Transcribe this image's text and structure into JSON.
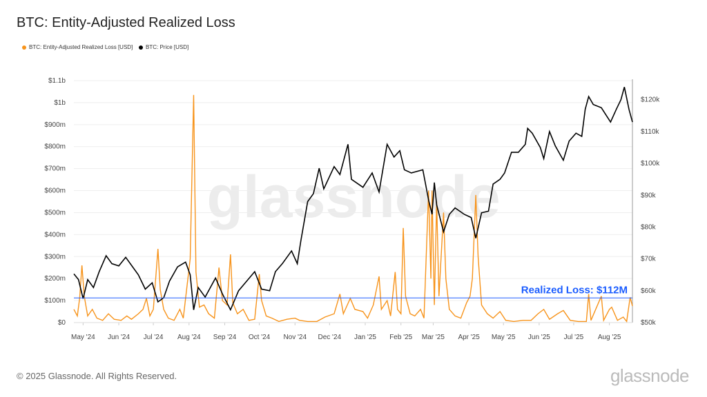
{
  "title": "BTC: Entity-Adjusted Realized Loss",
  "footer": "© 2025 Glassnode. All Rights Reserved.",
  "brand": "glassnode",
  "watermark": "glassnode",
  "chart_data": {
    "type": "line",
    "title": "BTC: Entity-Adjusted Realized Loss",
    "x_range": [
      "2024-04-23",
      "2025-08-21"
    ],
    "x_ticks": [
      "May '24",
      "Jun '24",
      "Jul '24",
      "Aug '24",
      "Sep '24",
      "Oct '24",
      "Nov '24",
      "Dec '24",
      "Jan '25",
      "Feb '25",
      "Mar '25",
      "Apr '25",
      "May '25",
      "Jun '25",
      "Jul '25",
      "Aug '25"
    ],
    "y_left": {
      "range": [
        0,
        1100000000
      ],
      "ticks": [
        "$0",
        "$100m",
        "$200m",
        "$300m",
        "$400m",
        "$500m",
        "$600m",
        "$700m",
        "$800m",
        "$900m",
        "$1b",
        "$1.1b"
      ]
    },
    "y_right": {
      "range": [
        50000,
        126000
      ],
      "ticks": [
        "$50k",
        "$60k",
        "$70k",
        "$80k",
        "$90k",
        "$100k",
        "$110k",
        "$120k"
      ]
    },
    "grid": true,
    "legend_placement": "top-left",
    "annotation": {
      "label": "Realized Loss: $112M",
      "value": 112000000,
      "color": "#1a5cff"
    },
    "series": [
      {
        "name": "BTC: Entity-Adjusted Realized Loss [USD]",
        "axis": "left",
        "color": "#f7931a",
        "unit": "USD millions",
        "points": [
          [
            "2024-04-23",
            60
          ],
          [
            "2024-04-26",
            30
          ],
          [
            "2024-04-28",
            110
          ],
          [
            "2024-04-30",
            260
          ],
          [
            "2024-05-02",
            120
          ],
          [
            "2024-05-05",
            30
          ],
          [
            "2024-05-09",
            60
          ],
          [
            "2024-05-13",
            20
          ],
          [
            "2024-05-18",
            10
          ],
          [
            "2024-05-23",
            40
          ],
          [
            "2024-05-28",
            15
          ],
          [
            "2024-06-03",
            10
          ],
          [
            "2024-06-08",
            30
          ],
          [
            "2024-06-12",
            15
          ],
          [
            "2024-06-18",
            40
          ],
          [
            "2024-06-22",
            60
          ],
          [
            "2024-06-25",
            110
          ],
          [
            "2024-06-28",
            30
          ],
          [
            "2024-07-01",
            60
          ],
          [
            "2024-07-05",
            335
          ],
          [
            "2024-07-07",
            150
          ],
          [
            "2024-07-10",
            60
          ],
          [
            "2024-07-14",
            20
          ],
          [
            "2024-07-19",
            10
          ],
          [
            "2024-07-24",
            60
          ],
          [
            "2024-07-27",
            20
          ],
          [
            "2024-08-02",
            290
          ],
          [
            "2024-08-05",
            1035
          ],
          [
            "2024-08-07",
            230
          ],
          [
            "2024-08-10",
            70
          ],
          [
            "2024-08-14",
            80
          ],
          [
            "2024-08-18",
            40
          ],
          [
            "2024-08-23",
            20
          ],
          [
            "2024-08-27",
            250
          ],
          [
            "2024-08-30",
            100
          ],
          [
            "2024-09-03",
            80
          ],
          [
            "2024-09-06",
            310
          ],
          [
            "2024-09-08",
            90
          ],
          [
            "2024-09-12",
            40
          ],
          [
            "2024-09-17",
            60
          ],
          [
            "2024-09-22",
            10
          ],
          [
            "2024-09-27",
            15
          ],
          [
            "2024-10-01",
            220
          ],
          [
            "2024-10-03",
            100
          ],
          [
            "2024-10-07",
            30
          ],
          [
            "2024-10-12",
            20
          ],
          [
            "2024-10-18",
            5
          ],
          [
            "2024-10-25",
            15
          ],
          [
            "2024-11-01",
            20
          ],
          [
            "2024-11-05",
            10
          ],
          [
            "2024-11-12",
            5
          ],
          [
            "2024-11-20",
            5
          ],
          [
            "2024-11-27",
            25
          ],
          [
            "2024-12-05",
            40
          ],
          [
            "2024-12-10",
            130
          ],
          [
            "2024-12-13",
            40
          ],
          [
            "2024-12-19",
            110
          ],
          [
            "2024-12-23",
            60
          ],
          [
            "2024-12-30",
            50
          ],
          [
            "2025-01-03",
            20
          ],
          [
            "2025-01-08",
            80
          ],
          [
            "2025-01-13",
            210
          ],
          [
            "2025-01-15",
            60
          ],
          [
            "2025-01-20",
            100
          ],
          [
            "2025-01-23",
            30
          ],
          [
            "2025-01-27",
            230
          ],
          [
            "2025-01-29",
            60
          ],
          [
            "2025-02-01",
            40
          ],
          [
            "2025-02-03",
            430
          ],
          [
            "2025-02-05",
            120
          ],
          [
            "2025-02-09",
            40
          ],
          [
            "2025-02-13",
            30
          ],
          [
            "2025-02-18",
            60
          ],
          [
            "2025-02-21",
            20
          ],
          [
            "2025-02-25",
            600
          ],
          [
            "2025-02-27",
            200
          ],
          [
            "2025-02-28",
            600
          ],
          [
            "2025-03-02",
            80
          ],
          [
            "2025-03-04",
            550
          ],
          [
            "2025-03-06",
            120
          ],
          [
            "2025-03-10",
            500
          ],
          [
            "2025-03-12",
            200
          ],
          [
            "2025-03-15",
            60
          ],
          [
            "2025-03-20",
            30
          ],
          [
            "2025-03-25",
            20
          ],
          [
            "2025-03-30",
            90
          ],
          [
            "2025-04-02",
            120
          ],
          [
            "2025-04-04",
            200
          ],
          [
            "2025-04-07",
            580
          ],
          [
            "2025-04-09",
            300
          ],
          [
            "2025-04-12",
            80
          ],
          [
            "2025-04-17",
            40
          ],
          [
            "2025-04-22",
            20
          ],
          [
            "2025-04-28",
            50
          ],
          [
            "2025-05-03",
            10
          ],
          [
            "2025-05-10",
            5
          ],
          [
            "2025-05-18",
            10
          ],
          [
            "2025-05-25",
            10
          ],
          [
            "2025-05-31",
            40
          ],
          [
            "2025-06-05",
            60
          ],
          [
            "2025-06-10",
            15
          ],
          [
            "2025-06-17",
            40
          ],
          [
            "2025-06-22",
            55
          ],
          [
            "2025-06-28",
            10
          ],
          [
            "2025-07-05",
            5
          ],
          [
            "2025-07-12",
            5
          ],
          [
            "2025-07-14",
            130
          ],
          [
            "2025-07-16",
            10
          ],
          [
            "2025-07-25",
            120
          ],
          [
            "2025-07-27",
            10
          ],
          [
            "2025-08-01",
            60
          ],
          [
            "2025-08-03",
            70
          ],
          [
            "2025-08-08",
            10
          ],
          [
            "2025-08-13",
            25
          ],
          [
            "2025-08-16",
            5
          ],
          [
            "2025-08-19",
            115
          ],
          [
            "2025-08-21",
            75
          ]
        ]
      },
      {
        "name": "BTC: Price [USD]",
        "axis": "right",
        "color": "#000000",
        "unit": "USD thousands",
        "points": [
          [
            "2024-04-23",
            65.3
          ],
          [
            "2024-04-27",
            63.5
          ],
          [
            "2024-05-01",
            57.5
          ],
          [
            "2024-05-05",
            63.5
          ],
          [
            "2024-05-10",
            61
          ],
          [
            "2024-05-15",
            66
          ],
          [
            "2024-05-21",
            71
          ],
          [
            "2024-05-26",
            68.5
          ],
          [
            "2024-06-01",
            67.8
          ],
          [
            "2024-06-07",
            70.5
          ],
          [
            "2024-06-12",
            68
          ],
          [
            "2024-06-18",
            65
          ],
          [
            "2024-06-24",
            60.5
          ],
          [
            "2024-06-30",
            62.5
          ],
          [
            "2024-07-05",
            56.5
          ],
          [
            "2024-07-10",
            57.8
          ],
          [
            "2024-07-15",
            63
          ],
          [
            "2024-07-22",
            67.5
          ],
          [
            "2024-07-29",
            69
          ],
          [
            "2024-08-02",
            65
          ],
          [
            "2024-08-05",
            54
          ],
          [
            "2024-08-09",
            61
          ],
          [
            "2024-08-15",
            58
          ],
          [
            "2024-08-24",
            64
          ],
          [
            "2024-08-30",
            59
          ],
          [
            "2024-09-06",
            54
          ],
          [
            "2024-09-13",
            60
          ],
          [
            "2024-09-20",
            63
          ],
          [
            "2024-09-27",
            66
          ],
          [
            "2024-10-03",
            60.5
          ],
          [
            "2024-10-10",
            60
          ],
          [
            "2024-10-15",
            66
          ],
          [
            "2024-10-21",
            68.5
          ],
          [
            "2024-10-29",
            72.5
          ],
          [
            "2024-11-03",
            68.5
          ],
          [
            "2024-11-06",
            75.5
          ],
          [
            "2024-11-12",
            88
          ],
          [
            "2024-11-17",
            90.5
          ],
          [
            "2024-11-22",
            98.5
          ],
          [
            "2024-11-26",
            92
          ],
          [
            "2024-12-05",
            99
          ],
          [
            "2024-12-10",
            96.5
          ],
          [
            "2024-12-17",
            106
          ],
          [
            "2024-12-20",
            95
          ],
          [
            "2024-12-30",
            92.5
          ],
          [
            "2025-01-07",
            97
          ],
          [
            "2025-01-13",
            91
          ],
          [
            "2025-01-20",
            106
          ],
          [
            "2025-01-26",
            102
          ],
          [
            "2025-01-31",
            104
          ],
          [
            "2025-02-04",
            98
          ],
          [
            "2025-02-10",
            97
          ],
          [
            "2025-02-20",
            98
          ],
          [
            "2025-02-25",
            88.5
          ],
          [
            "2025-02-28",
            84
          ],
          [
            "2025-03-02",
            94
          ],
          [
            "2025-03-04",
            87
          ],
          [
            "2025-03-10",
            78.5
          ],
          [
            "2025-03-15",
            84
          ],
          [
            "2025-03-20",
            86
          ],
          [
            "2025-03-28",
            84
          ],
          [
            "2025-04-03",
            83
          ],
          [
            "2025-04-07",
            76.5
          ],
          [
            "2025-04-12",
            84.5
          ],
          [
            "2025-04-18",
            85
          ],
          [
            "2025-04-22",
            93.5
          ],
          [
            "2025-04-28",
            95
          ],
          [
            "2025-05-02",
            97
          ],
          [
            "2025-05-08",
            103.5
          ],
          [
            "2025-05-14",
            103.5
          ],
          [
            "2025-05-20",
            106
          ],
          [
            "2025-05-22",
            111
          ],
          [
            "2025-05-26",
            109.5
          ],
          [
            "2025-06-02",
            105
          ],
          [
            "2025-06-05",
            101.5
          ],
          [
            "2025-06-10",
            110
          ],
          [
            "2025-06-15",
            105.5
          ],
          [
            "2025-06-22",
            101
          ],
          [
            "2025-06-27",
            107
          ],
          [
            "2025-07-03",
            109.5
          ],
          [
            "2025-07-08",
            108.5
          ],
          [
            "2025-07-11",
            117
          ],
          [
            "2025-07-14",
            121
          ],
          [
            "2025-07-18",
            118.5
          ],
          [
            "2025-07-25",
            117.5
          ],
          [
            "2025-08-02",
            113
          ],
          [
            "2025-08-07",
            117
          ],
          [
            "2025-08-11",
            120
          ],
          [
            "2025-08-14",
            124
          ],
          [
            "2025-08-18",
            117
          ],
          [
            "2025-08-21",
            113
          ]
        ]
      }
    ]
  }
}
